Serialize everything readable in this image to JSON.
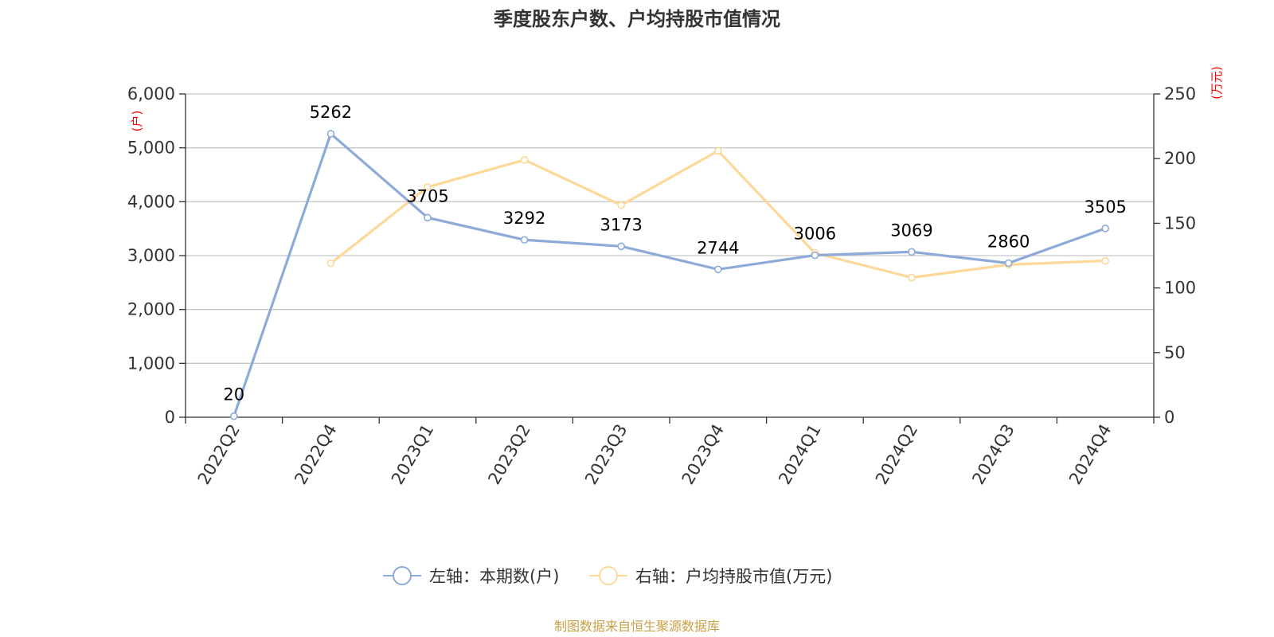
{
  "chart_data": {
    "type": "line",
    "title": "季度股东户数、户均持股市值情况",
    "categories": [
      "2022Q2",
      "2022Q4",
      "2023Q1",
      "2023Q2",
      "2023Q3",
      "2023Q4",
      "2024Q1",
      "2024Q2",
      "2024Q3",
      "2024Q4"
    ],
    "left_axis": {
      "unit": "(户)",
      "ylim": [
        0,
        6000
      ],
      "ticks": [
        "0",
        "1,000",
        "2,000",
        "3,000",
        "4,000",
        "5,000",
        "6,000"
      ]
    },
    "right_axis": {
      "unit": "(万元)",
      "ylim": [
        0,
        250
      ],
      "ticks": [
        "0",
        "50",
        "100",
        "150",
        "200",
        "250"
      ]
    },
    "series": [
      {
        "name": "左轴：本期数(户)",
        "axis": "left",
        "color": "#8eaad8",
        "values": [
          20,
          5262,
          3705,
          3292,
          3173,
          2744,
          3006,
          3069,
          2860,
          3505
        ],
        "labels": [
          "20",
          "5262",
          "3705",
          "3292",
          "3173",
          "2744",
          "3006",
          "3069",
          "2860",
          "3505"
        ]
      },
      {
        "name": "右轴：户均持股市值(万元)",
        "axis": "right",
        "color": "#fdd899",
        "values": [
          null,
          119,
          178,
          199,
          164,
          206,
          127,
          108,
          118,
          121
        ]
      }
    ],
    "grid": true,
    "legend_position": "bottom-center",
    "source": "制图数据来自恒生聚源数据库"
  }
}
